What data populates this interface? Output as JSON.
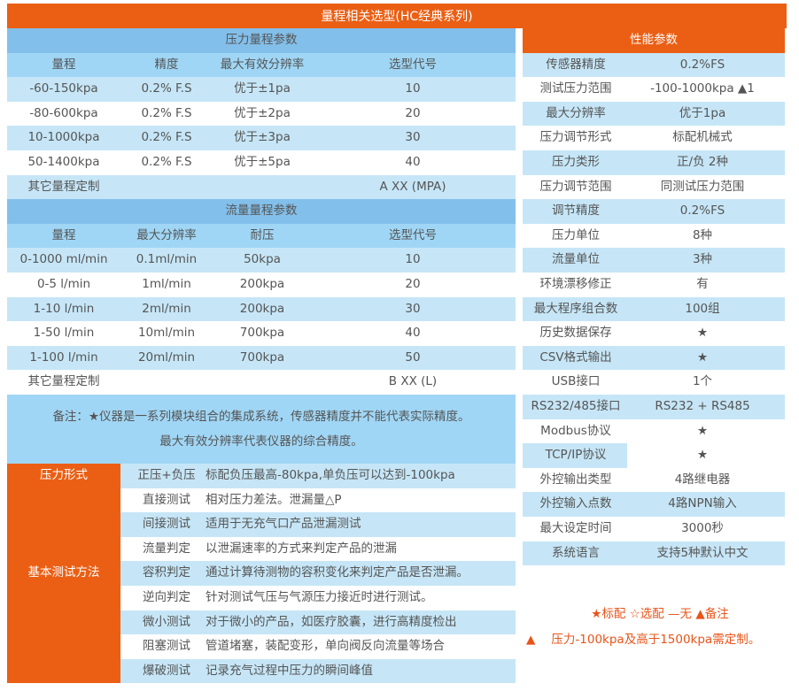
{
  "title": "量程相关选型(HC经典系列)",
  "pressure": {
    "heading": "压力量程参数",
    "columns": [
      "量程",
      "精度",
      "最大有效分辨率",
      "选型代号"
    ],
    "rows": [
      [
        "-60-150kpa",
        "0.2% F.S",
        "优于±1pa",
        "10"
      ],
      [
        "-80-600kpa",
        "0.2% F.S",
        "优于±2pa",
        "20"
      ],
      [
        "10-1000kpa",
        "0.2% F.S",
        "优于±3pa",
        "30"
      ],
      [
        "50-1400kpa",
        "0.2% F.S",
        "优于±5pa",
        "40"
      ]
    ],
    "custom_label": "其它量程定制",
    "custom_code": "A XX (MPA)"
  },
  "flow": {
    "heading": "流量量程参数",
    "columns": [
      "量程",
      "最大分辨率",
      "耐压",
      "选型代号"
    ],
    "rows": [
      [
        "0-1000 ml/min",
        "0.1ml/min",
        "50kpa",
        "10"
      ],
      [
        "0-5 l/min",
        "1ml/min",
        "200kpa",
        "20"
      ],
      [
        "1-10 l/min",
        "2ml/min",
        "200kpa",
        "30"
      ],
      [
        "1-50 l/min",
        "10ml/min",
        "700kpa",
        "40"
      ],
      [
        "1-100 l/min",
        "20ml/min",
        "700kpa",
        "50"
      ]
    ],
    "custom_label": "其它量程定制",
    "custom_code": "B XX (L)"
  },
  "note": {
    "line1": "备注：★仪器是一系列模块组合的集成系统，传感器精度并不能代表实际精度。",
    "line2": "最大有效分辨率代表仪器的综合精度。"
  },
  "methods": {
    "group1": "压力形式",
    "group2": "基本测试方法",
    "rows": [
      [
        "正压+负压",
        "标配负压最高-80kpa,单负压可以达到-100kpa"
      ],
      [
        "直接测试",
        "相对压力差法。泄漏量△P"
      ],
      [
        "间接测试",
        "适用于无充气口产品泄漏测试"
      ],
      [
        "流量判定",
        "以泄漏速率的方式来判定产品的泄漏"
      ],
      [
        "容积判定",
        "通过计算待测物的容积变化来判定产品是否泄漏。"
      ],
      [
        "逆向判定",
        "针对测试气压与气源压力接近时进行测试。"
      ],
      [
        "微小测试",
        "对于微小的产品，如医疗胶囊，进行高精度检出"
      ],
      [
        "阻塞测试",
        "管道堵塞，装配变形，单向阀反向流量等场合"
      ],
      [
        "爆破测试",
        "记录充气过程中压力的瞬间峰值"
      ]
    ]
  },
  "performance": {
    "heading": "性能参数",
    "rows": [
      [
        "传感器精度",
        "0.2%FS"
      ],
      [
        "测试压力范围",
        "-100-1000kpa ▲1"
      ],
      [
        "最大分辨率",
        "优于1pa"
      ],
      [
        "压力调节形式",
        "标配机械式"
      ],
      [
        "压力类形",
        "正/负 2种"
      ],
      [
        "压力调节范围",
        "同测试压力范围"
      ],
      [
        "调节精度",
        "0.2%FS"
      ],
      [
        "压力单位",
        "8种"
      ],
      [
        "流量单位",
        "3种"
      ],
      [
        "环境漂移修正",
        "有"
      ],
      [
        "最大程序组合数",
        "100组"
      ],
      [
        "历史数据保存",
        "★"
      ],
      [
        "CSV格式输出",
        "★"
      ],
      [
        "USB接口",
        "1个"
      ],
      [
        "RS232/485接口",
        "RS232 + RS485"
      ],
      [
        "Modbus协议",
        "★"
      ],
      [
        "TCP/IP协议",
        "★"
      ],
      [
        "外控输出类型",
        "4路继电器"
      ],
      [
        "外控输入点数",
        "4路NPN输入"
      ],
      [
        "最大设定时间",
        "3000秒"
      ],
      [
        "系统语言",
        "支持5种默认中文"
      ]
    ]
  },
  "legend": {
    "line1": "★标配 ☆选配 —无 ▲备注",
    "line2_mark": "▲",
    "line2_text": "压力-100kpa及高于1500kpa需定制。"
  },
  "colors": {
    "orange": "#eb5f14",
    "header_blue": "#82bfea",
    "col_blue": "#a0d6f5",
    "row_blue": "#c6e6f7",
    "legend": "#e8541a"
  }
}
